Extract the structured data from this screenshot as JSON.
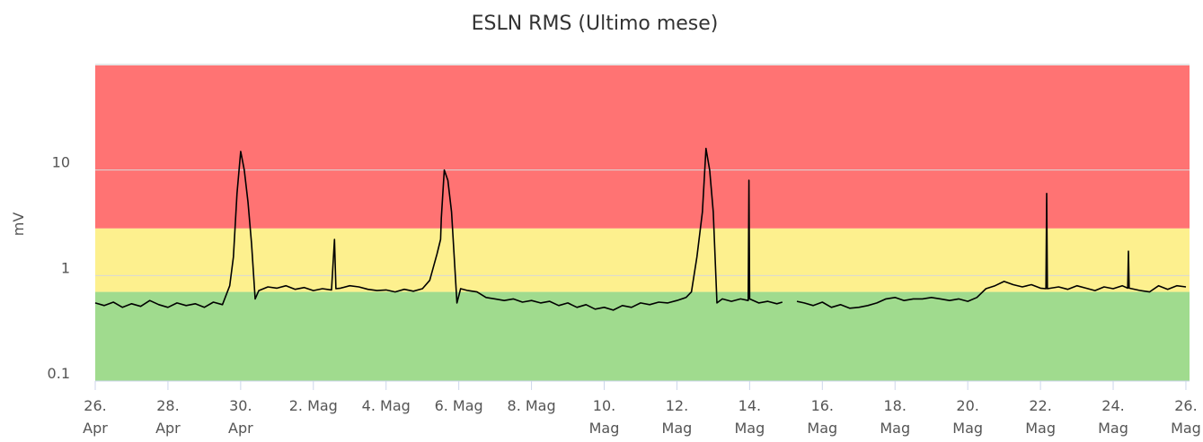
{
  "chart_data": {
    "type": "line",
    "title": "ESLN RMS (Ultimo mese)",
    "y_label": "mV",
    "log_y": true,
    "grid": true,
    "ylim": [
      0.1,
      100
    ],
    "yticks": [
      0.1,
      1,
      10
    ],
    "xlim": [
      0,
      30.1
    ],
    "xticks": [
      {
        "value": 0,
        "label": "26.\nApr"
      },
      {
        "value": 2,
        "label": "28.\nApr"
      },
      {
        "value": 4,
        "label": "30.\nApr"
      },
      {
        "value": 6,
        "label": "2. Mag"
      },
      {
        "value": 8,
        "label": "4. Mag"
      },
      {
        "value": 10,
        "label": "6. Mag"
      },
      {
        "value": 12,
        "label": "8. Mag"
      },
      {
        "value": 14,
        "label": "10.\nMag"
      },
      {
        "value": 16,
        "label": "12.\nMag"
      },
      {
        "value": 18,
        "label": "14.\nMag"
      },
      {
        "value": 20,
        "label": "16.\nMag"
      },
      {
        "value": 22,
        "label": "18.\nMag"
      },
      {
        "value": 24,
        "label": "20.\nMag"
      },
      {
        "value": 26,
        "label": "22.\nMag"
      },
      {
        "value": 28,
        "label": "24.\nMag"
      },
      {
        "value": 30,
        "label": "26.\nMag"
      }
    ],
    "bands": [
      {
        "from": 0.1,
        "to": 0.7,
        "color": "#a0db8e"
      },
      {
        "from": 0.7,
        "to": 2.8,
        "color": "#fdf08e"
      },
      {
        "from": 2.8,
        "to": 100,
        "color": "#ff7373"
      }
    ],
    "series": [
      {
        "color": "#000000",
        "x": [
          0,
          0.25,
          0.5,
          0.75,
          1,
          1.25,
          1.5,
          1.75,
          2,
          2.25,
          2.5,
          2.75,
          3,
          3.25,
          3.5,
          3.7,
          3.8,
          3.9,
          4.0,
          4.1,
          4.2,
          4.3,
          4.4,
          4.5,
          4.75,
          5,
          5.25,
          5.5,
          5.75,
          6,
          6.25,
          6.5,
          6.58,
          6.62,
          6.75,
          7,
          7.25,
          7.5,
          7.75,
          8,
          8.25,
          8.5,
          8.75,
          9,
          9.2,
          9.4,
          9.5,
          9.52,
          9.6,
          9.7,
          9.8,
          9.95,
          10.05,
          10.25,
          10.5,
          10.75,
          11,
          11.25,
          11.5,
          11.75,
          12,
          12.25,
          12.5,
          12.75,
          13,
          13.25,
          13.5,
          13.75,
          14,
          14.25,
          14.5,
          14.75,
          15,
          15.25,
          15.5,
          15.75,
          16,
          16.25,
          16.4,
          16.55,
          16.7,
          16.8,
          16.9,
          17,
          17.1,
          17.25,
          17.5,
          17.75,
          17.96,
          17.98,
          18.0,
          18.25,
          18.5,
          18.75,
          18.9,
          19.0,
          19.3,
          19.5,
          19.75,
          20,
          20.25,
          20.5,
          20.75,
          21,
          21.25,
          21.5,
          21.75,
          22,
          22.25,
          22.5,
          22.75,
          23,
          23.25,
          23.5,
          23.75,
          24,
          24.25,
          24.5,
          24.75,
          25,
          25.25,
          25.5,
          25.75,
          26,
          26.15,
          26.17,
          26.19,
          26.5,
          26.75,
          27,
          27.25,
          27.5,
          27.75,
          28,
          28.25,
          28.4,
          28.42,
          28.44,
          28.75,
          29,
          29.25,
          29.5,
          29.75,
          30
        ],
        "values": [
          0.55,
          0.52,
          0.56,
          0.5,
          0.54,
          0.51,
          0.58,
          0.53,
          0.5,
          0.55,
          0.52,
          0.54,
          0.5,
          0.56,
          0.53,
          0.8,
          1.5,
          6,
          15,
          10,
          5,
          2,
          0.6,
          0.72,
          0.78,
          0.76,
          0.8,
          0.74,
          0.77,
          0.72,
          0.75,
          0.73,
          2.2,
          0.75,
          0.76,
          0.8,
          0.78,
          0.74,
          0.72,
          0.73,
          0.7,
          0.74,
          0.71,
          0.75,
          0.9,
          1.6,
          2.2,
          3.5,
          10,
          8,
          4,
          0.55,
          0.75,
          0.72,
          0.7,
          0.62,
          0.6,
          0.58,
          0.6,
          0.56,
          0.58,
          0.55,
          0.57,
          0.52,
          0.55,
          0.5,
          0.53,
          0.48,
          0.5,
          0.47,
          0.52,
          0.5,
          0.55,
          0.53,
          0.56,
          0.55,
          0.58,
          0.62,
          0.7,
          1.5,
          4,
          16,
          10,
          4,
          0.55,
          0.6,
          0.57,
          0.6,
          0.58,
          8,
          0.6,
          0.55,
          0.57,
          0.54,
          0.56,
          null,
          0.57,
          0.55,
          0.52,
          0.56,
          0.5,
          0.53,
          0.49,
          0.5,
          0.52,
          0.55,
          0.6,
          0.62,
          0.58,
          0.6,
          0.6,
          0.62,
          0.6,
          0.58,
          0.6,
          0.57,
          0.62,
          0.75,
          0.8,
          0.88,
          0.82,
          0.78,
          0.82,
          0.76,
          0.75,
          6,
          0.75,
          0.78,
          0.74,
          0.8,
          0.76,
          0.72,
          0.78,
          0.75,
          0.8,
          0.76,
          1.7,
          0.76,
          0.72,
          0.7,
          0.8,
          0.74,
          0.8,
          0.78
        ]
      }
    ]
  }
}
